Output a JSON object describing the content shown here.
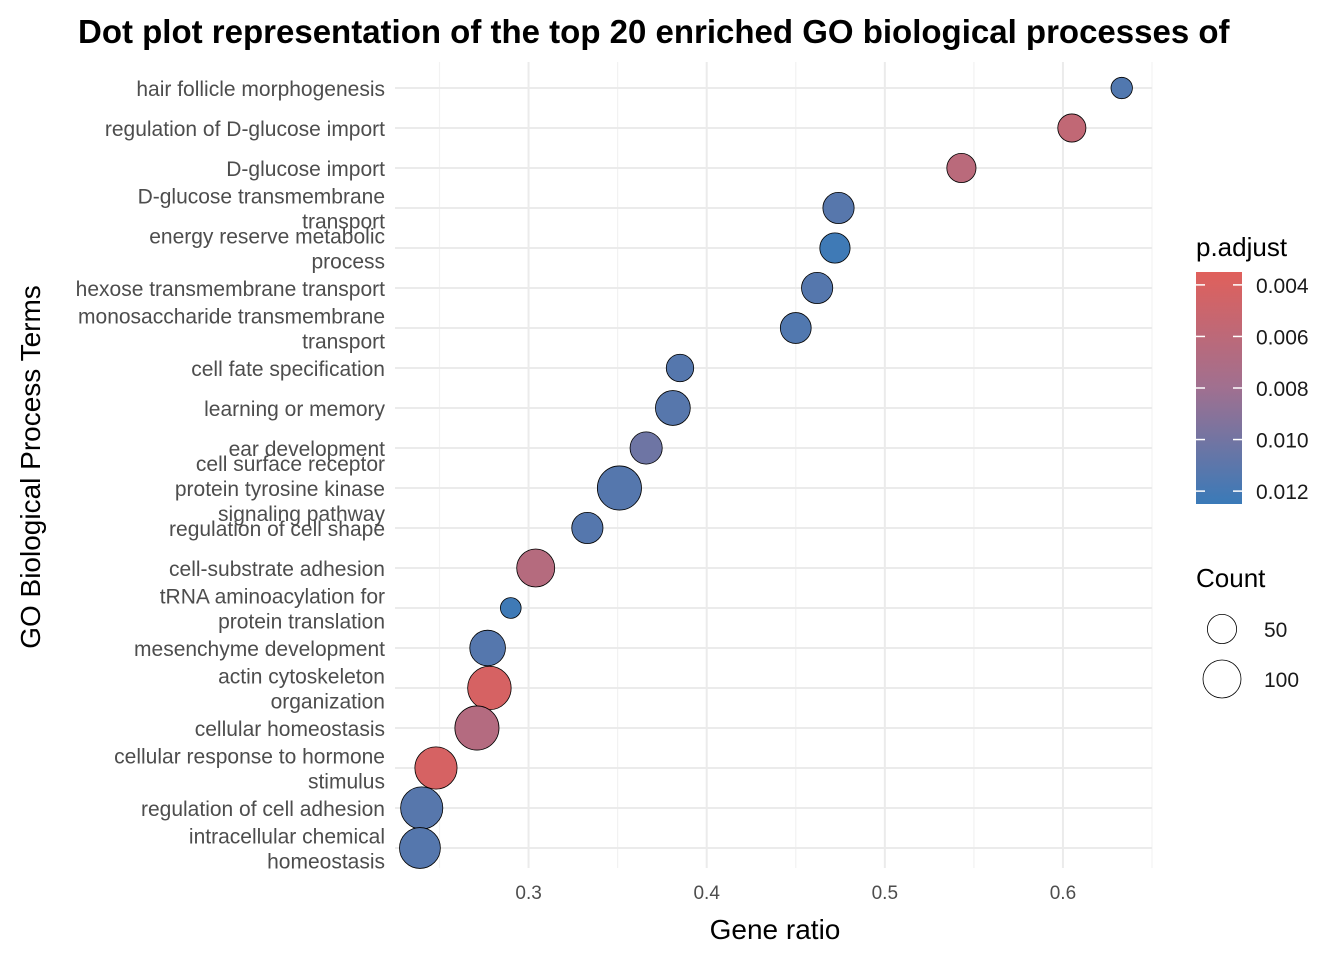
{
  "chart_data": {
    "type": "scatter",
    "title": "Dot plot representation of the top 20 enriched GO biological processes of",
    "xlabel": "Gene ratio",
    "ylabel": "GO Biological Process Terms",
    "xlim": [
      0.225,
      0.65
    ],
    "xticks": [
      0.3,
      0.4,
      0.5,
      0.6
    ],
    "xtick_labels": [
      "0.3",
      "0.4",
      "0.5",
      "0.6"
    ],
    "grid": true,
    "color_scale": {
      "title": "p.adjust",
      "low_color": "#e0605b",
      "mid_color": "#a07090",
      "high_color": "#3a7ab8",
      "domain": [
        0.0035,
        0.0125
      ],
      "ticks": [
        0.004,
        0.006,
        0.008,
        0.01,
        0.012
      ],
      "tick_labels": [
        "0.004",
        "0.006",
        "0.008",
        "0.010",
        "0.012"
      ]
    },
    "size_scale": {
      "title": "Count",
      "ticks": [
        50,
        100
      ],
      "tick_labels": [
        "50",
        "100"
      ]
    },
    "points": [
      {
        "term": [
          "hair follicle morphogenesis"
        ],
        "gene_ratio": 0.633,
        "count": 20,
        "p_adjust": 0.0115
      },
      {
        "term": [
          "regulation of D-glucose import"
        ],
        "gene_ratio": 0.605,
        "count": 45,
        "p_adjust": 0.0057
      },
      {
        "term": [
          "D-glucose import"
        ],
        "gene_ratio": 0.543,
        "count": 50,
        "p_adjust": 0.0062
      },
      {
        "term": [
          "D-glucose transmembrane",
          "transport"
        ],
        "gene_ratio": 0.474,
        "count": 60,
        "p_adjust": 0.0112
      },
      {
        "term": [
          "energy reserve metabolic",
          "process"
        ],
        "gene_ratio": 0.472,
        "count": 55,
        "p_adjust": 0.0123
      },
      {
        "term": [
          "hexose transmembrane transport"
        ],
        "gene_ratio": 0.462,
        "count": 60,
        "p_adjust": 0.0113
      },
      {
        "term": [
          "monosaccharide transmembrane",
          "transport"
        ],
        "gene_ratio": 0.45,
        "count": 58,
        "p_adjust": 0.0115
      },
      {
        "term": [
          "cell fate specification"
        ],
        "gene_ratio": 0.385,
        "count": 42,
        "p_adjust": 0.0113
      },
      {
        "term": [
          "learning or memory"
        ],
        "gene_ratio": 0.381,
        "count": 80,
        "p_adjust": 0.0112
      },
      {
        "term": [
          "ear development"
        ],
        "gene_ratio": 0.366,
        "count": 65,
        "p_adjust": 0.0102
      },
      {
        "term": [
          "cell surface receptor",
          "protein tyrosine kinase",
          "signaling pathway"
        ],
        "gene_ratio": 0.351,
        "count": 145,
        "p_adjust": 0.0113
      },
      {
        "term": [
          "regulation of cell shape"
        ],
        "gene_ratio": 0.333,
        "count": 60,
        "p_adjust": 0.0113
      },
      {
        "term": [
          "cell-substrate adhesion"
        ],
        "gene_ratio": 0.304,
        "count": 100,
        "p_adjust": 0.0065
      },
      {
        "term": [
          "tRNA aminoacylation for",
          "protein translation"
        ],
        "gene_ratio": 0.29,
        "count": 18,
        "p_adjust": 0.0123
      },
      {
        "term": [
          "mesenchyme development"
        ],
        "gene_ratio": 0.277,
        "count": 85,
        "p_adjust": 0.0113
      },
      {
        "term": [
          "actin cytoskeleton",
          "organization"
        ],
        "gene_ratio": 0.278,
        "count": 140,
        "p_adjust": 0.0042
      },
      {
        "term": [
          "cellular homeostasis"
        ],
        "gene_ratio": 0.271,
        "count": 145,
        "p_adjust": 0.0066
      },
      {
        "term": [
          "cellular response to hormone",
          "stimulus"
        ],
        "gene_ratio": 0.248,
        "count": 130,
        "p_adjust": 0.0042
      },
      {
        "term": [
          "regulation of cell adhesion"
        ],
        "gene_ratio": 0.24,
        "count": 130,
        "p_adjust": 0.0112
      },
      {
        "term": [
          "intracellular chemical",
          "homeostasis"
        ],
        "gene_ratio": 0.239,
        "count": 120,
        "p_adjust": 0.0113
      }
    ]
  }
}
